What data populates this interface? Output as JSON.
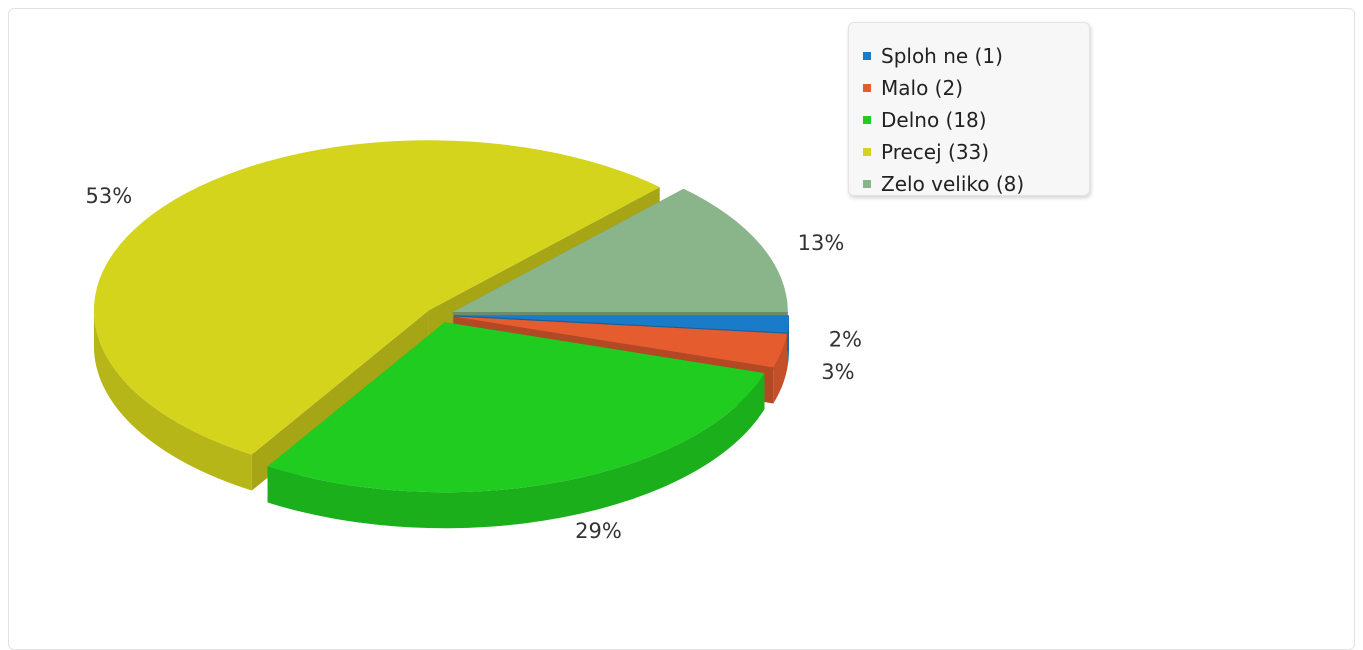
{
  "chart_data": {
    "type": "pie",
    "title": "",
    "slices": [
      {
        "label": "Sploh ne (1)",
        "value": 1,
        "percent_label": "2%",
        "color": "#1a7bc9"
      },
      {
        "label": "Malo (2)",
        "value": 2,
        "percent_label": "3%",
        "color": "#e55c2e"
      },
      {
        "label": "Delno (18)",
        "value": 18,
        "percent_label": "29%",
        "color": "#1fcc1f"
      },
      {
        "label": "Precej (33)",
        "value": 33,
        "percent_label": "53%",
        "color": "#d5d41c"
      },
      {
        "label": "Zelo veliko (8)",
        "value": 8,
        "percent_label": "13%",
        "color": "#8ab48a"
      }
    ],
    "legend_position": "top-right",
    "exploded": true,
    "three_d": true
  }
}
